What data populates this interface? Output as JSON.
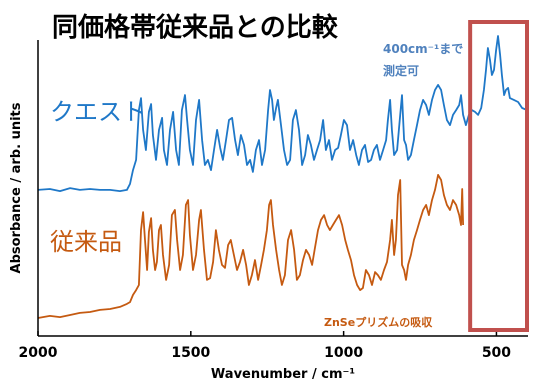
{
  "chart_data": {
    "type": "line",
    "title": "同価格帯従来品との比較",
    "xlabel": "Wavenumber / cm⁻¹",
    "ylabel": "Absorbance / arb. units",
    "xlim": [
      2000,
      400
    ],
    "ylim": [
      0,
      100
    ],
    "x_ticks": [
      2000,
      1500,
      1000,
      500
    ],
    "x_tick_labels": [
      "2000",
      "1500",
      "1000",
      "500"
    ],
    "grid": false,
    "legend": "inline labels",
    "highlight": {
      "x_range": [
        586,
        400
      ],
      "color": "#c0504d"
    },
    "annotations": [
      {
        "text": "400cm⁻¹まで",
        "color": "#4f81bd"
      },
      {
        "text": "測定可",
        "color": "#4f81bd"
      },
      {
        "text": "ZnSeプリズムの吸収",
        "color": "#c55a11"
      }
    ],
    "series": [
      {
        "name": "クエスト",
        "color": "#1f78c8",
        "points": [
          [
            2000,
            48.7
          ],
          [
            1961,
            49.0
          ],
          [
            1928,
            48.3
          ],
          [
            1895,
            49.3
          ],
          [
            1863,
            48.7
          ],
          [
            1830,
            49.0
          ],
          [
            1797,
            48.7
          ],
          [
            1764,
            48.7
          ],
          [
            1732,
            48.3
          ],
          [
            1709,
            48.7
          ],
          [
            1699,
            50.7
          ],
          [
            1689,
            55.3
          ],
          [
            1679,
            58.7
          ],
          [
            1670,
            75.3
          ],
          [
            1663,
            79.3
          ],
          [
            1656,
            68.7
          ],
          [
            1647,
            62.0
          ],
          [
            1637,
            74.7
          ],
          [
            1630,
            77.3
          ],
          [
            1624,
            67.0
          ],
          [
            1614,
            58.7
          ],
          [
            1604,
            68.7
          ],
          [
            1594,
            72.7
          ],
          [
            1588,
            62.0
          ],
          [
            1578,
            57.0
          ],
          [
            1568,
            68.7
          ],
          [
            1558,
            74.7
          ],
          [
            1548,
            62.0
          ],
          [
            1539,
            57.0
          ],
          [
            1529,
            75.3
          ],
          [
            1519,
            80.3
          ],
          [
            1512,
            72.0
          ],
          [
            1503,
            62.0
          ],
          [
            1493,
            57.0
          ],
          [
            1483,
            72.0
          ],
          [
            1473,
            78.7
          ],
          [
            1463,
            65.3
          ],
          [
            1454,
            57.0
          ],
          [
            1444,
            58.7
          ],
          [
            1434,
            55.3
          ],
          [
            1424,
            62.0
          ],
          [
            1414,
            68.7
          ],
          [
            1404,
            62.7
          ],
          [
            1395,
            58.7
          ],
          [
            1385,
            65.3
          ],
          [
            1375,
            72.0
          ],
          [
            1365,
            72.7
          ],
          [
            1355,
            65.3
          ],
          [
            1346,
            60.3
          ],
          [
            1336,
            67.0
          ],
          [
            1326,
            63.7
          ],
          [
            1316,
            57.0
          ],
          [
            1306,
            58.7
          ],
          [
            1297,
            54.7
          ],
          [
            1287,
            62.0
          ],
          [
            1277,
            65.3
          ],
          [
            1267,
            57.0
          ],
          [
            1257,
            62.0
          ],
          [
            1247,
            75.3
          ],
          [
            1241,
            82.0
          ],
          [
            1234,
            78.7
          ],
          [
            1228,
            72.0
          ],
          [
            1221,
            76.0
          ],
          [
            1215,
            78.7
          ],
          [
            1205,
            70.3
          ],
          [
            1195,
            62.0
          ],
          [
            1185,
            57.0
          ],
          [
            1175,
            58.7
          ],
          [
            1166,
            72.0
          ],
          [
            1156,
            75.3
          ],
          [
            1146,
            68.7
          ],
          [
            1136,
            57.0
          ],
          [
            1126,
            60.3
          ],
          [
            1117,
            67.0
          ],
          [
            1107,
            63.7
          ],
          [
            1097,
            58.7
          ],
          [
            1087,
            62.0
          ],
          [
            1077,
            65.3
          ],
          [
            1067,
            72.0
          ],
          [
            1058,
            62.0
          ],
          [
            1048,
            65.3
          ],
          [
            1038,
            58.7
          ],
          [
            1028,
            62.0
          ],
          [
            1018,
            62.7
          ],
          [
            1009,
            67.0
          ],
          [
            999,
            72.0
          ],
          [
            989,
            70.3
          ],
          [
            979,
            62.0
          ],
          [
            969,
            65.3
          ],
          [
            959,
            60.3
          ],
          [
            950,
            57.0
          ],
          [
            940,
            62.0
          ],
          [
            930,
            63.7
          ],
          [
            920,
            58.0
          ],
          [
            910,
            58.7
          ],
          [
            901,
            62.0
          ],
          [
            891,
            63.7
          ],
          [
            881,
            58.7
          ],
          [
            871,
            62.0
          ],
          [
            861,
            65.3
          ],
          [
            855,
            72.0
          ],
          [
            848,
            78.7
          ],
          [
            842,
            68.7
          ],
          [
            835,
            60.3
          ],
          [
            825,
            62.0
          ],
          [
            815,
            73.7
          ],
          [
            809,
            80.3
          ],
          [
            802,
            65.3
          ],
          [
            796,
            63.7
          ],
          [
            789,
            58.7
          ],
          [
            780,
            60.3
          ],
          [
            770,
            65.3
          ],
          [
            760,
            70.3
          ],
          [
            750,
            75.3
          ],
          [
            740,
            78.7
          ],
          [
            730,
            77.0
          ],
          [
            721,
            73.7
          ],
          [
            711,
            78.7
          ],
          [
            701,
            82.0
          ],
          [
            691,
            83.7
          ],
          [
            681,
            82.0
          ],
          [
            672,
            77.0
          ],
          [
            662,
            72.0
          ],
          [
            652,
            70.3
          ],
          [
            642,
            73.7
          ],
          [
            632,
            75.3
          ],
          [
            622,
            77.0
          ],
          [
            616,
            80.3
          ],
          [
            609,
            73.7
          ],
          [
            600,
            70.3
          ],
          [
            590,
            73.7
          ],
          [
            580,
            75.3
          ],
          [
            570,
            74.7
          ],
          [
            560,
            73.7
          ],
          [
            550,
            76.0
          ],
          [
            541,
            82.0
          ],
          [
            534,
            88.7
          ],
          [
            528,
            96.0
          ],
          [
            521,
            92.0
          ],
          [
            515,
            87.0
          ],
          [
            508,
            88.7
          ],
          [
            501,
            95.3
          ],
          [
            495,
            100.0
          ],
          [
            488,
            93.7
          ],
          [
            482,
            87.0
          ],
          [
            475,
            80.3
          ],
          [
            469,
            82.0
          ],
          [
            462,
            82.7
          ],
          [
            456,
            79.3
          ],
          [
            443,
            78.7
          ],
          [
            429,
            78.0
          ],
          [
            416,
            76.0
          ],
          [
            400,
            75.3
          ]
        ]
      },
      {
        "name": "従来品",
        "color": "#c55a11",
        "points": [
          [
            2000,
            6.0
          ],
          [
            1961,
            6.7
          ],
          [
            1928,
            6.3
          ],
          [
            1895,
            7.0
          ],
          [
            1863,
            7.7
          ],
          [
            1830,
            8.0
          ],
          [
            1797,
            8.7
          ],
          [
            1764,
            9.0
          ],
          [
            1732,
            9.7
          ],
          [
            1709,
            10.7
          ],
          [
            1699,
            11.3
          ],
          [
            1689,
            13.7
          ],
          [
            1679,
            15.3
          ],
          [
            1670,
            17.0
          ],
          [
            1663,
            35.3
          ],
          [
            1656,
            41.3
          ],
          [
            1650,
            32.0
          ],
          [
            1643,
            22.0
          ],
          [
            1637,
            34.7
          ],
          [
            1630,
            39.3
          ],
          [
            1624,
            28.7
          ],
          [
            1617,
            22.0
          ],
          [
            1611,
            24.7
          ],
          [
            1604,
            35.3
          ],
          [
            1598,
            37.0
          ],
          [
            1591,
            27.0
          ],
          [
            1581,
            18.7
          ],
          [
            1571,
            23.7
          ],
          [
            1562,
            40.3
          ],
          [
            1552,
            42.0
          ],
          [
            1545,
            32.0
          ],
          [
            1535,
            22.0
          ],
          [
            1526,
            27.0
          ],
          [
            1516,
            43.7
          ],
          [
            1509,
            45.3
          ],
          [
            1503,
            33.7
          ],
          [
            1493,
            22.0
          ],
          [
            1483,
            27.0
          ],
          [
            1473,
            38.7
          ],
          [
            1467,
            42.0
          ],
          [
            1457,
            28.7
          ],
          [
            1447,
            18.7
          ],
          [
            1437,
            19.3
          ],
          [
            1427,
            24.7
          ],
          [
            1418,
            35.3
          ],
          [
            1408,
            28.7
          ],
          [
            1398,
            23.7
          ],
          [
            1388,
            22.7
          ],
          [
            1378,
            30.3
          ],
          [
            1369,
            32.0
          ],
          [
            1359,
            27.0
          ],
          [
            1349,
            22.0
          ],
          [
            1339,
            24.7
          ],
          [
            1329,
            28.7
          ],
          [
            1319,
            23.7
          ],
          [
            1310,
            17.0
          ],
          [
            1300,
            20.3
          ],
          [
            1290,
            25.3
          ],
          [
            1280,
            18.7
          ],
          [
            1270,
            23.7
          ],
          [
            1261,
            28.7
          ],
          [
            1251,
            35.3
          ],
          [
            1244,
            43.7
          ],
          [
            1238,
            45.3
          ],
          [
            1231,
            37.0
          ],
          [
            1221,
            28.7
          ],
          [
            1211,
            22.0
          ],
          [
            1202,
            17.0
          ],
          [
            1192,
            20.3
          ],
          [
            1182,
            32.0
          ],
          [
            1172,
            35.3
          ],
          [
            1162,
            28.7
          ],
          [
            1153,
            18.7
          ],
          [
            1143,
            20.3
          ],
          [
            1133,
            25.3
          ],
          [
            1123,
            28.7
          ],
          [
            1113,
            27.0
          ],
          [
            1103,
            23.7
          ],
          [
            1094,
            29.3
          ],
          [
            1084,
            35.3
          ],
          [
            1074,
            38.7
          ],
          [
            1064,
            40.3
          ],
          [
            1054,
            37.0
          ],
          [
            1045,
            35.3
          ],
          [
            1035,
            37.0
          ],
          [
            1025,
            38.7
          ],
          [
            1015,
            40.3
          ],
          [
            1005,
            37.0
          ],
          [
            995,
            32.0
          ],
          [
            986,
            28.7
          ],
          [
            976,
            25.3
          ],
          [
            966,
            20.3
          ],
          [
            956,
            17.0
          ],
          [
            946,
            15.3
          ],
          [
            937,
            16.0
          ],
          [
            927,
            22.0
          ],
          [
            917,
            20.3
          ],
          [
            907,
            17.0
          ],
          [
            897,
            21.3
          ],
          [
            888,
            20.3
          ],
          [
            878,
            18.7
          ],
          [
            868,
            22.0
          ],
          [
            858,
            24.7
          ],
          [
            848,
            32.0
          ],
          [
            842,
            38.7
          ],
          [
            835,
            27.0
          ],
          [
            829,
            32.0
          ],
          [
            822,
            47.0
          ],
          [
            815,
            52.0
          ],
          [
            809,
            23.7
          ],
          [
            802,
            22.0
          ],
          [
            796,
            18.7
          ],
          [
            789,
            23.7
          ],
          [
            780,
            27.0
          ],
          [
            770,
            32.0
          ],
          [
            760,
            35.3
          ],
          [
            750,
            38.7
          ],
          [
            740,
            42.0
          ],
          [
            730,
            43.7
          ],
          [
            721,
            40.3
          ],
          [
            711,
            45.3
          ],
          [
            701,
            48.7
          ],
          [
            691,
            53.7
          ],
          [
            681,
            52.0
          ],
          [
            672,
            47.0
          ],
          [
            662,
            43.7
          ],
          [
            652,
            42.0
          ],
          [
            642,
            45.3
          ],
          [
            632,
            43.7
          ],
          [
            622,
            40.3
          ],
          [
            616,
            37.0
          ],
          [
            612,
            49.0
          ],
          [
            609,
            37.0
          ]
        ]
      }
    ]
  }
}
